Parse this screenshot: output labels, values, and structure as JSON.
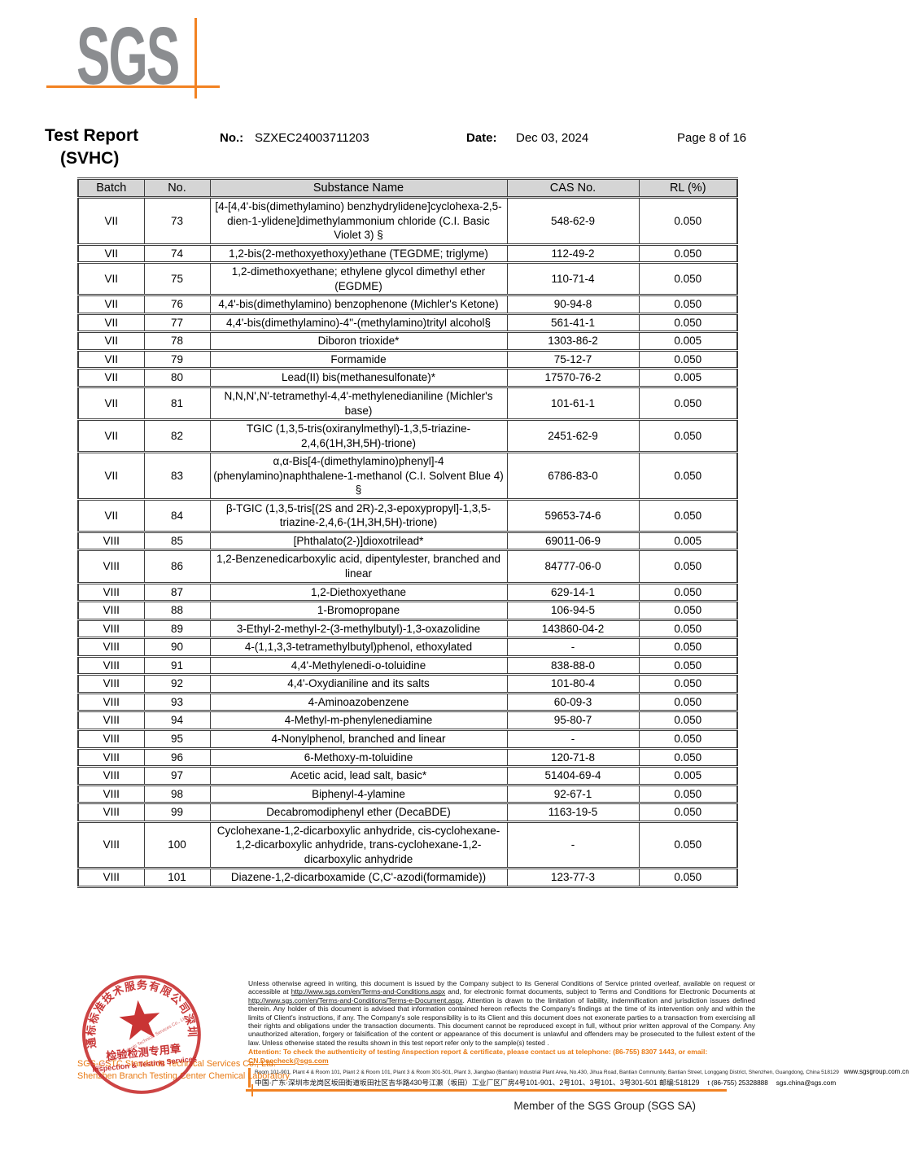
{
  "header": {
    "logo_text": "SGS",
    "title_line1": "Test Report",
    "title_line2": "(SVHC)",
    "no_label": "No.:",
    "no_value": "SZXEC24003711203",
    "date_label": "Date:",
    "date_value": "Dec 03, 2024",
    "page_label": "Page 8 of 16"
  },
  "table": {
    "columns": [
      "Batch",
      "No.",
      "Substance Name",
      "CAS No.",
      "RL (%)"
    ],
    "rows": [
      {
        "batch": "VII",
        "no": "73",
        "substance": "[4-[4,4'-bis(dimethylamino) benzhydrylidene]cyclohexa-2,5-dien-1-ylidene]dimethylammonium chloride (C.I. Basic Violet 3) §",
        "cas": "548-62-9",
        "rl": "0.050"
      },
      {
        "batch": "VII",
        "no": "74",
        "substance": "1,2-bis(2-methoxyethoxy)ethane (TEGDME; triglyme)",
        "cas": "112-49-2",
        "rl": "0.050"
      },
      {
        "batch": "VII",
        "no": "75",
        "substance": "1,2-dimethoxyethane; ethylene glycol dimethyl ether (EGDME)",
        "cas": "110-71-4",
        "rl": "0.050"
      },
      {
        "batch": "VII",
        "no": "76",
        "substance": "4,4'-bis(dimethylamino) benzophenone (Michler's Ketone)",
        "cas": "90-94-8",
        "rl": "0.050"
      },
      {
        "batch": "VII",
        "no": "77",
        "substance": "4,4'-bis(dimethylamino)-4''-(methylamino)trityl alcohol§",
        "cas": "561-41-1",
        "rl": "0.050"
      },
      {
        "batch": "VII",
        "no": "78",
        "substance": "Diboron trioxide*",
        "cas": "1303-86-2",
        "rl": "0.005"
      },
      {
        "batch": "VII",
        "no": "79",
        "substance": "Formamide",
        "cas": "75-12-7",
        "rl": "0.050"
      },
      {
        "batch": "VII",
        "no": "80",
        "substance": "Lead(II) bis(methanesulfonate)*",
        "cas": "17570-76-2",
        "rl": "0.005"
      },
      {
        "batch": "VII",
        "no": "81",
        "substance": "N,N,N',N'-tetramethyl-4,4'-methylenedianiline (Michler's base)",
        "cas": "101-61-1",
        "rl": "0.050"
      },
      {
        "batch": "VII",
        "no": "82",
        "substance": "TGIC (1,3,5-tris(oxiranylmethyl)-1,3,5-triazine-2,4,6(1H,3H,5H)-trione)",
        "cas": "2451-62-9",
        "rl": "0.050"
      },
      {
        "batch": "VII",
        "no": "83",
        "substance": "α,α-Bis[4-(dimethylamino)phenyl]-4 (phenylamino)naphthalene-1-methanol (C.I. Solvent Blue 4) §",
        "cas": "6786-83-0",
        "rl": "0.050"
      },
      {
        "batch": "VII",
        "no": "84",
        "substance": "β-TGIC (1,3,5-tris[(2S and 2R)-2,3-epoxypropyl]-1,3,5-triazine-2,4,6-(1H,3H,5H)-trione)",
        "cas": "59653-74-6",
        "rl": "0.050"
      },
      {
        "batch": "VIII",
        "no": "85",
        "substance": "[Phthalato(2-)]dioxotrilead*",
        "cas": "69011-06-9",
        "rl": "0.005"
      },
      {
        "batch": "VIII",
        "no": "86",
        "substance": "1,2-Benzenedicarboxylic acid, dipentylester, branched and linear",
        "cas": "84777-06-0",
        "rl": "0.050"
      },
      {
        "batch": "VIII",
        "no": "87",
        "substance": "1,2-Diethoxyethane",
        "cas": "629-14-1",
        "rl": "0.050"
      },
      {
        "batch": "VIII",
        "no": "88",
        "substance": "1-Bromopropane",
        "cas": "106-94-5",
        "rl": "0.050"
      },
      {
        "batch": "VIII",
        "no": "89",
        "substance": "3-Ethyl-2-methyl-2-(3-methylbutyl)-1,3-oxazolidine",
        "cas": "143860-04-2",
        "rl": "0.050"
      },
      {
        "batch": "VIII",
        "no": "90",
        "substance": "4-(1,1,3,3-tetramethylbutyl)phenol, ethoxylated",
        "cas": "-",
        "rl": "0.050"
      },
      {
        "batch": "VIII",
        "no": "91",
        "substance": "4,4'-Methylenedi-o-toluidine",
        "cas": "838-88-0",
        "rl": "0.050"
      },
      {
        "batch": "VIII",
        "no": "92",
        "substance": "4,4'-Oxydianiline and its salts",
        "cas": "101-80-4",
        "rl": "0.050"
      },
      {
        "batch": "VIII",
        "no": "93",
        "substance": "4-Aminoazobenzene",
        "cas": "60-09-3",
        "rl": "0.050"
      },
      {
        "batch": "VIII",
        "no": "94",
        "substance": "4-Methyl-m-phenylenediamine",
        "cas": "95-80-7",
        "rl": "0.050"
      },
      {
        "batch": "VIII",
        "no": "95",
        "substance": "4-Nonylphenol, branched and linear",
        "cas": "-",
        "rl": "0.050"
      },
      {
        "batch": "VIII",
        "no": "96",
        "substance": "6-Methoxy-m-toluidine",
        "cas": "120-71-8",
        "rl": "0.050"
      },
      {
        "batch": "VIII",
        "no": "97",
        "substance": "Acetic acid, lead salt, basic*",
        "cas": "51404-69-4",
        "rl": "0.005"
      },
      {
        "batch": "VIII",
        "no": "98",
        "substance": "Biphenyl-4-ylamine",
        "cas": "92-67-1",
        "rl": "0.050"
      },
      {
        "batch": "VIII",
        "no": "99",
        "substance": "Decabromodiphenyl ether (DecaBDE)",
        "cas": "1163-19-5",
        "rl": "0.050"
      },
      {
        "batch": "VIII",
        "no": "100",
        "substance": "Cyclohexane-1,2-dicarboxylic anhydride, cis-cyclohexane-1,2-dicarboxylic anhydride, trans-cyclohexane-1,2-dicarboxylic anhydride",
        "cas": "-",
        "rl": "0.050"
      },
      {
        "batch": "VIII",
        "no": "101",
        "substance": "Diazene-1,2-dicarboxamide (C,C'-azodi(formamide))",
        "cas": "123-77-3",
        "rl": "0.050"
      }
    ]
  },
  "footer": {
    "legal_text": "Unless otherwise agreed in writing, this document is issued by the Company subject to its General Conditions of Service printed overleaf, available on request or accessible at http://www.sgs.com/en/Terms-and-Conditions.aspx and, for electronic format documents, subject to Terms and Conditions for Electronic Documents at http://www.sgs.com/en/Terms-and-Conditions/Terms-e-Document.aspx. Attention is drawn to the limitation of liability, indemnification and jurisdiction issues defined therein. Any holder of this document is advised that information contained hereon reflects the Company's findings at the time of its intervention only and within the limits of Client's instructions, if any. The Company's sole responsibility is to its Client and this document does not exonerate parties to a transaction from exercising all their rights and obligations under the transaction documents. This document cannot be reproduced except in full, without prior written approval of the Company. Any unauthorized alteration, forgery or falsification of the content or appearance of this document is unlawful and offenders may be prosecuted to the fullest extent of the law. Unless otherwise stated the results shown in this test report refer only to the sample(s) tested .",
    "attention_prefix": "Attention: To check the authenticity of testing /inspection report & certificate, please contact us at telephone: (86-755) 8307 1443, or email: ",
    "attention_email": "CN.Doccheck@sgs.com",
    "address_en": "Room 101-901, Plant 4 & Room 101, Plant 2 & Room 101, Plant 3 & Room 301-501, Plant 3, Jiangbao (Bantian) Industrial Plant Area, No.430, Jihua Road, Bantian Community, Bantian Street, Longgang District, Shenzhen, Guangdong, China 518129",
    "website": "www.sgsgroup.com.cn",
    "address_cn": "中国·广东·深圳市龙岗区坂田街道坂田社区吉华路430号江灏（坂田）工业厂区厂房4号101-901、2号101、3号101、3号301-501 邮编:518129",
    "phone": "t (86-755) 25328888",
    "email": "sgs.china@sgs.com",
    "company_line1": "SGS-CSTC Standards Technical Services Co., Ltd.",
    "company_line2": "Shenzhen Branch Testing Center Chemical Laboratory",
    "member_text": "Member of the SGS Group (SGS SA)",
    "stamp": {
      "ring_text_cn": "通标标准技术服务有限公司深圳分公司",
      "ring_text_en": "SGS-CSTC Standards Technical Services Co., Ltd. Shenzhen Branch",
      "center_line1": "检验检测专用章",
      "center_line2": "Inspection & Testing Services"
    }
  },
  "colors": {
    "sgs_orange": "#F28222",
    "attention_orange": "#E87913",
    "stamp_red": "#C42323",
    "logo_gray": "#8B8D90",
    "table_header_bg": "#D5D5D5",
    "table_border": "#3D3D3D"
  }
}
